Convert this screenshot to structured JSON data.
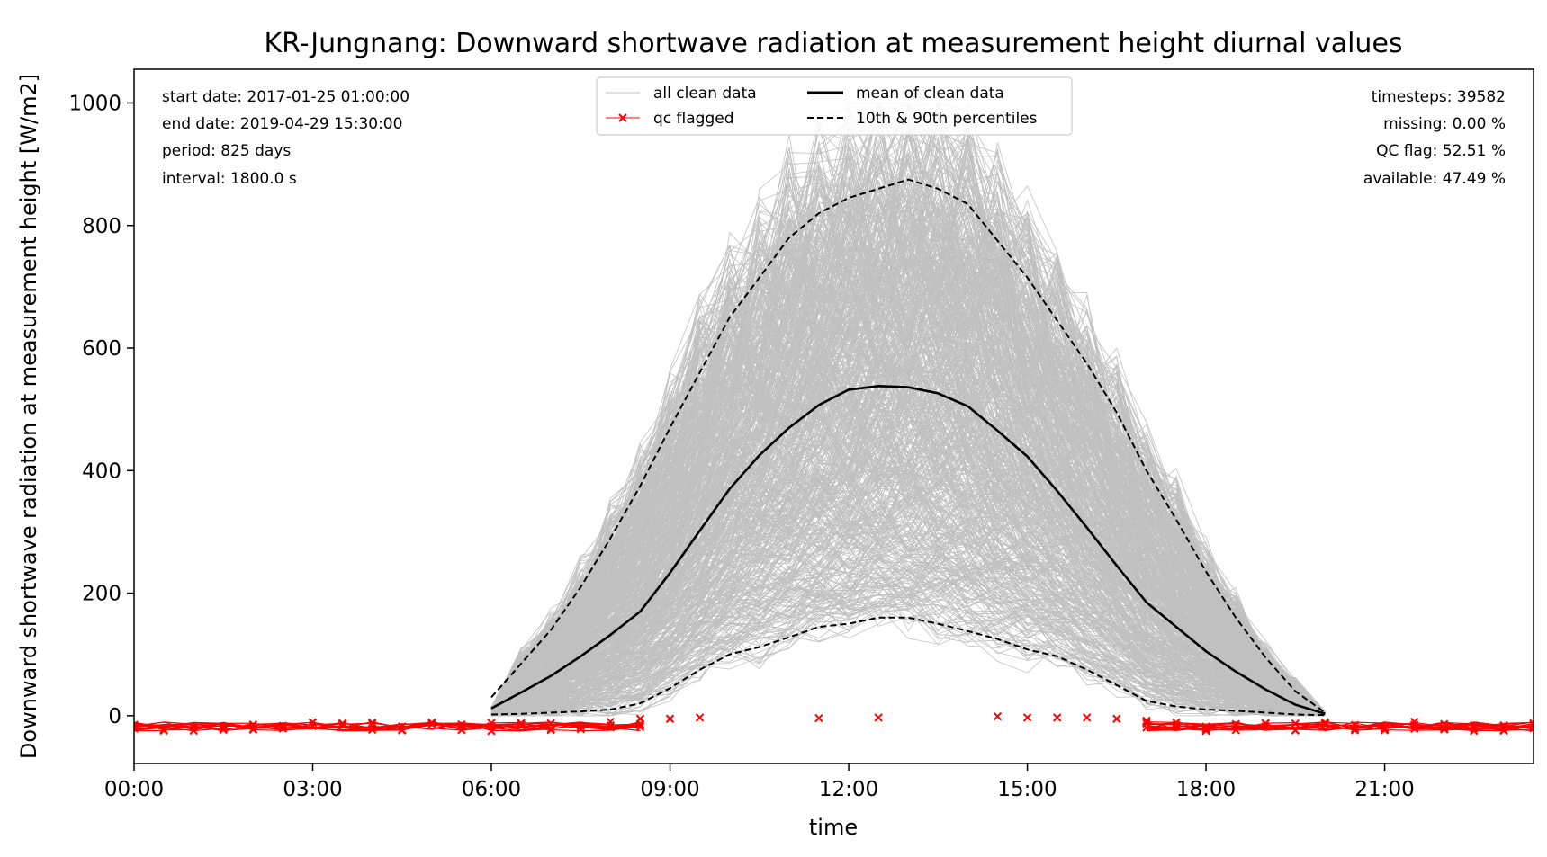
{
  "chart_data": {
    "type": "line",
    "title": "KR-Jungnang: Downward shortwave radiation at measurement height diurnal values",
    "xlabel": "time",
    "ylabel": "Downward shortwave radiation at measurement height [W/m2]",
    "xlim": [
      0,
      23.5
    ],
    "ylim": [
      -78,
      1055
    ],
    "xticks": [
      "00:00",
      "03:00",
      "06:00",
      "09:00",
      "12:00",
      "15:00",
      "18:00",
      "21:00"
    ],
    "yticks": [
      0,
      200,
      400,
      600,
      800,
      1000
    ],
    "grid": false,
    "legend": {
      "placement": "upper-center",
      "entries": [
        "all clean data",
        "mean of clean data",
        "qc flagged",
        "10th & 90th percentiles"
      ]
    },
    "info_left": [
      "start date: 2017-01-25 01:00:00",
      "end date: 2019-04-29 15:30:00",
      "period: 825 days",
      "interval: 1800.0 s"
    ],
    "info_right": [
      "timesteps: 39582",
      "missing: 0.00 %",
      "QC flag: 52.51 %",
      "available: 47.49 %"
    ],
    "colors": {
      "clean": "#c0c0c0",
      "mean": "#000000",
      "percentiles": "#000000",
      "qc": "#ff0000"
    },
    "series": [
      {
        "name": "mean of clean data",
        "style": "solid",
        "x": [
          6.0,
          6.5,
          7.0,
          7.5,
          8.0,
          8.5,
          9.0,
          9.5,
          10.0,
          10.5,
          11.0,
          11.5,
          12.0,
          12.5,
          13.0,
          13.5,
          14.0,
          14.5,
          15.0,
          15.5,
          16.0,
          16.5,
          17.0,
          17.5,
          18.0,
          18.5,
          19.0,
          19.5,
          20.0
        ],
        "y": [
          12,
          38,
          65,
          97,
          132,
          170,
          233,
          302,
          370,
          425,
          470,
          507,
          532,
          538,
          536,
          526,
          505,
          465,
          423,
          367,
          307,
          245,
          185,
          145,
          105,
          72,
          43,
          18,
          3
        ]
      },
      {
        "name": "10th & 90th percentiles",
        "style": "dashed",
        "label": "90th",
        "x": [
          6.0,
          6.5,
          7.0,
          7.5,
          8.0,
          8.5,
          9.0,
          9.5,
          10.0,
          10.5,
          11.0,
          11.5,
          12.0,
          12.5,
          13.0,
          13.5,
          14.0,
          14.5,
          15.0,
          15.5,
          16.0,
          16.5,
          17.0,
          17.5,
          18.0,
          18.5,
          19.0,
          19.5,
          20.0
        ],
        "y": [
          30,
          85,
          140,
          210,
          290,
          375,
          470,
          560,
          650,
          715,
          780,
          820,
          845,
          860,
          875,
          860,
          835,
          775,
          715,
          645,
          575,
          495,
          400,
          320,
          235,
          160,
          95,
          40,
          5
        ]
      },
      {
        "name": "10th & 90th percentiles",
        "style": "dashed",
        "label": "10th",
        "x": [
          6.0,
          6.5,
          7.0,
          7.5,
          8.0,
          8.5,
          9.0,
          9.5,
          10.0,
          10.5,
          11.0,
          11.5,
          12.0,
          12.5,
          13.0,
          13.5,
          14.0,
          14.5,
          15.0,
          15.5,
          16.0,
          16.5,
          17.0,
          17.5,
          18.0,
          18.5,
          19.0,
          19.5,
          20.0
        ],
        "y": [
          2,
          3,
          5,
          7,
          10,
          20,
          45,
          75,
          100,
          112,
          128,
          145,
          150,
          160,
          160,
          150,
          138,
          125,
          108,
          97,
          75,
          50,
          24,
          15,
          10,
          8,
          5,
          2,
          1
        ]
      }
    ],
    "qc_flagged": {
      "name": "qc flagged",
      "dense_x_ranges": [
        [
          0.0,
          8.5
        ],
        [
          17.0,
          23.5
        ]
      ],
      "dense_y_range": [
        -25,
        -10
      ],
      "sparse_points": [
        {
          "x": 8.5,
          "y": -5
        },
        {
          "x": 9.0,
          "y": -5
        },
        {
          "x": 9.5,
          "y": -3
        },
        {
          "x": 11.5,
          "y": -4
        },
        {
          "x": 12.5,
          "y": -3
        },
        {
          "x": 14.5,
          "y": -1
        },
        {
          "x": 15.0,
          "y": -3
        },
        {
          "x": 15.5,
          "y": -3
        },
        {
          "x": 16.0,
          "y": -3
        },
        {
          "x": 16.5,
          "y": -5
        },
        {
          "x": 17.0,
          "y": -8
        }
      ]
    }
  }
}
